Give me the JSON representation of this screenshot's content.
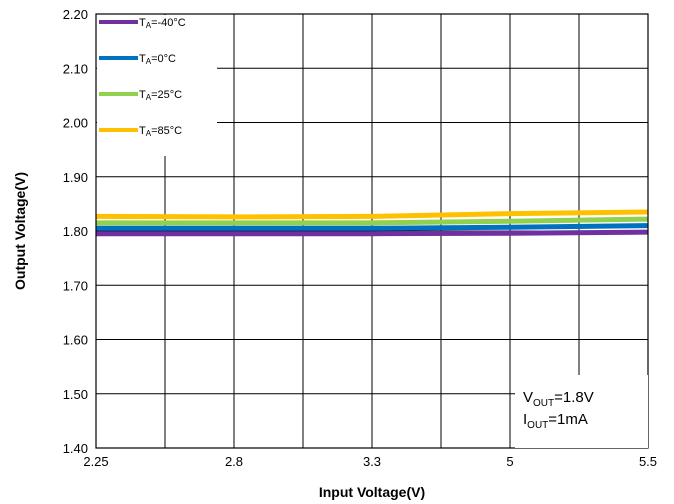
{
  "chart_data": {
    "type": "line",
    "xlabel": "Input Voltage(V)",
    "ylabel": "Output Voltage(V)",
    "x_ticks": [
      "2.25",
      "2.8",
      "3.3",
      "5",
      "5.5"
    ],
    "y_ticks": [
      "1.40",
      "1.50",
      "1.60",
      "1.70",
      "1.80",
      "1.90",
      "2.00",
      "2.10",
      "2.20"
    ],
    "ylim": [
      1.4,
      2.2
    ],
    "grid": true,
    "legend_position": "top-left",
    "series": [
      {
        "name": "TA=-40°C",
        "label_main": "T",
        "label_sub": "A",
        "label_rest": "=-40°C",
        "color": "#7030A0",
        "values": [
          1.795,
          1.795,
          1.795,
          1.796,
          1.798
        ]
      },
      {
        "name": "TA=0°C",
        "label_main": "T",
        "label_sub": "A",
        "label_rest": "=0°C",
        "color": "#0070C0",
        "values": [
          1.805,
          1.805,
          1.805,
          1.807,
          1.81
        ]
      },
      {
        "name": "TA=25°C",
        "label_main": "T",
        "label_sub": "A",
        "label_rest": "=25°C",
        "color": "#92D050",
        "values": [
          1.815,
          1.815,
          1.815,
          1.818,
          1.822
        ]
      },
      {
        "name": "TA=85°C",
        "label_main": "T",
        "label_sub": "A",
        "label_rest": "=85°C",
        "color": "#FFC000",
        "values": [
          1.827,
          1.826,
          1.827,
          1.832,
          1.835
        ]
      }
    ],
    "annotation": {
      "line1_main": "V",
      "line1_sub": "OUT",
      "line1_rest": "=1.8V",
      "line2_main": "I",
      "line2_sub": "OUT",
      "line2_rest": "=1mA"
    }
  }
}
